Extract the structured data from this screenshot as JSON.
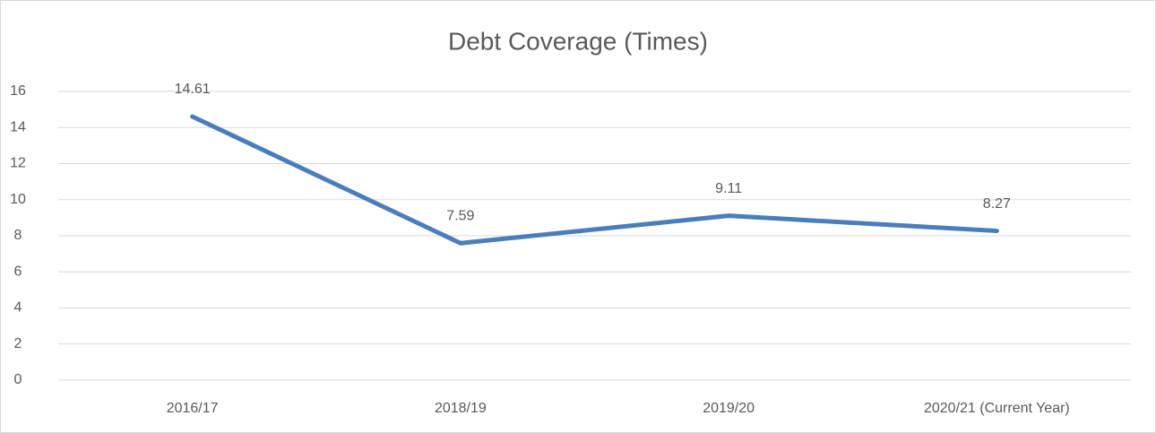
{
  "chart_data": {
    "type": "line",
    "title": "Debt Coverage (Times)",
    "categories": [
      "2016/17",
      "2018/19",
      "2019/20",
      "2020/21 (Current Year)"
    ],
    "series": [
      {
        "name": "Debt Coverage",
        "color": "#4a7ebb",
        "values": [
          14.61,
          7.59,
          9.11,
          8.27
        ]
      }
    ],
    "ylim": [
      0,
      16
    ],
    "yticks": [
      0,
      2,
      4,
      6,
      8,
      10,
      12,
      14,
      16
    ],
    "grid": true
  }
}
